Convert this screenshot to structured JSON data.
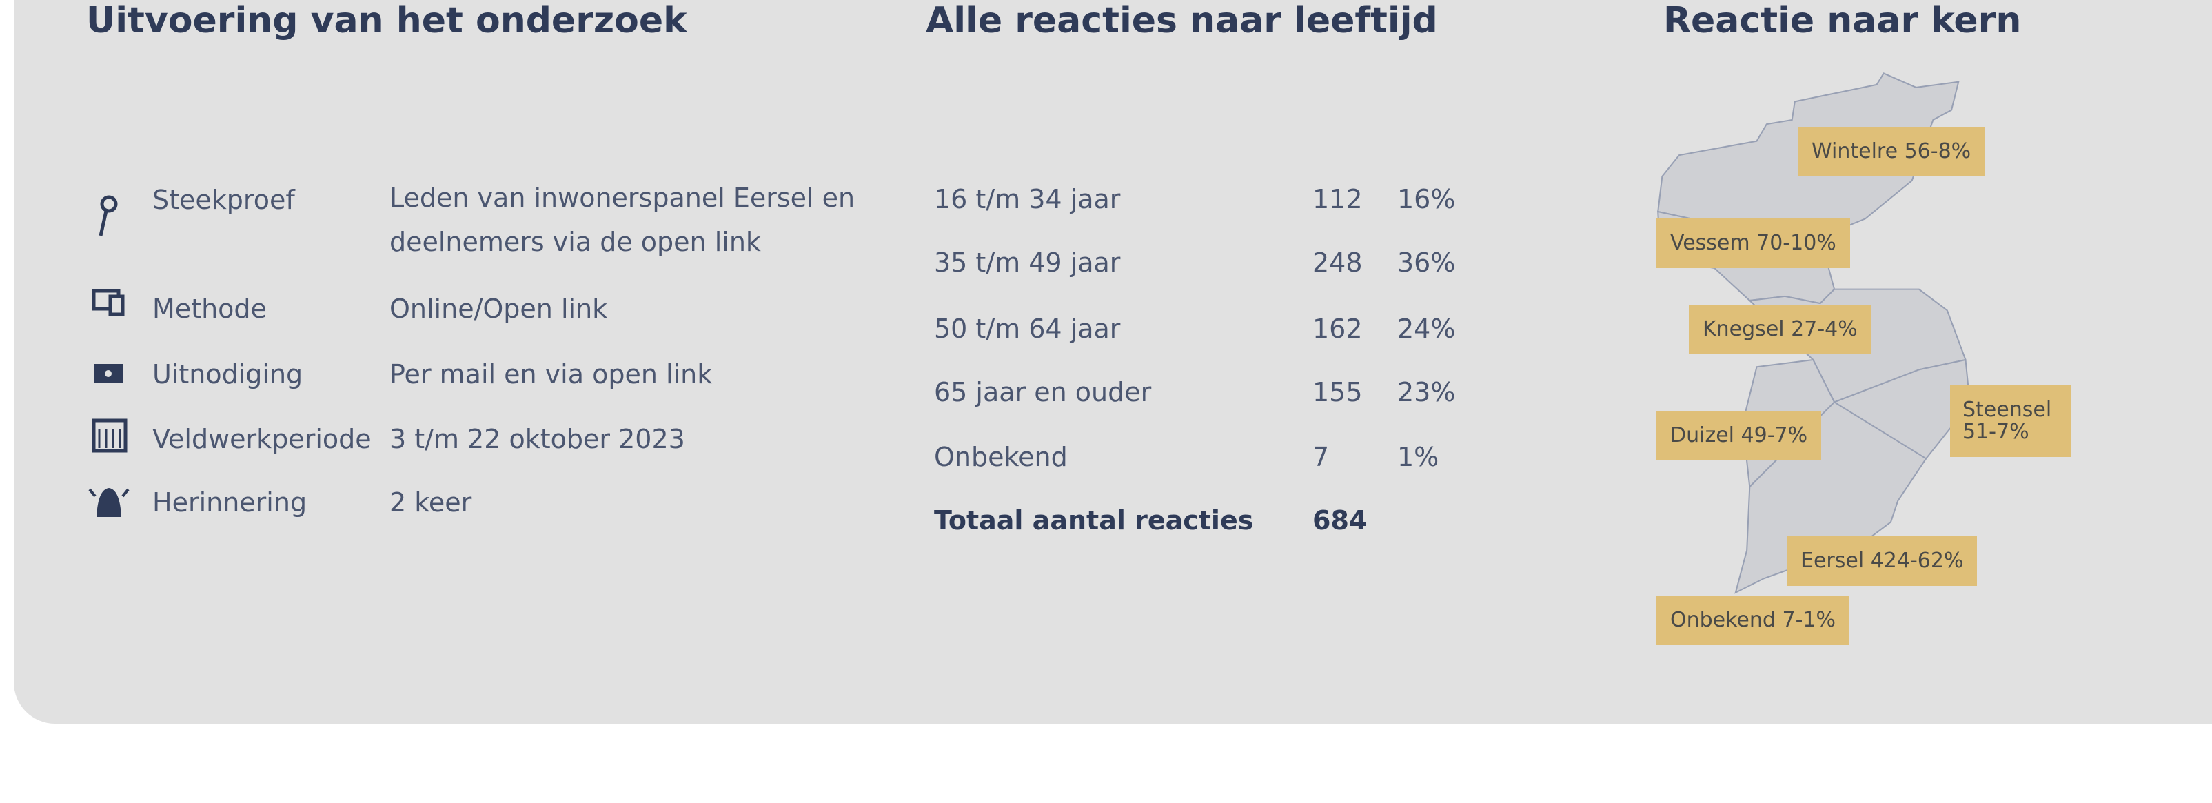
{
  "survey": {
    "title": "Uitvoering van het onderzoek",
    "rows": [
      {
        "label": "Steekproef",
        "value": "Leden van inwonerspanel Eersel en deelnemers via de open link"
      },
      {
        "label": "Methode",
        "value": "Online/Open link"
      },
      {
        "label": "Uitnodiging",
        "value": "Per mail en via open link"
      },
      {
        "label": "Veldwerkperiode",
        "value": "3 t/m 22 oktober 2023"
      },
      {
        "label": "Herinnering",
        "value": "2 keer"
      }
    ]
  },
  "age": {
    "title": "Alle reacties naar leeftijd",
    "rows": [
      [
        "16 t/m 34 jaar",
        "112",
        "16%"
      ],
      [
        "35 t/m 49 jaar",
        "248",
        "36%"
      ],
      [
        "50 t/m 64 jaar",
        "162",
        "24%"
      ],
      [
        "65 jaar en ouder",
        "155",
        "23%"
      ],
      [
        "Onbekend",
        "7",
        "1%"
      ]
    ],
    "total": {
      "label": "Totaal aantal reacties",
      "value": "684"
    }
  },
  "map": {
    "title": "Reactie naar kern",
    "labels": [
      "Wintelre 56-8%",
      "Vessem 70-10%",
      "Knegsel 27-4%",
      "Steensel 51-7%",
      "Duizel 49-7%",
      "Eersel 424-62%",
      "Onbekend 7-1%"
    ]
  }
}
